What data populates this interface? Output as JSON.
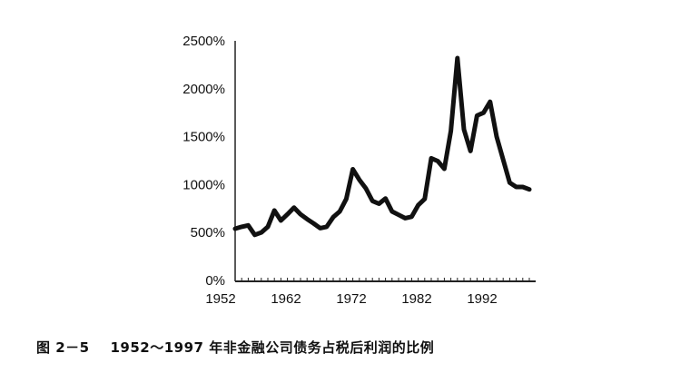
{
  "caption": "图 2－5    1952～1997 年非金融公司债务占税后利润的比例",
  "chart_data": {
    "type": "line",
    "title": "",
    "xlabel": "",
    "ylabel": "",
    "xlim": [
      1952,
      1997
    ],
    "ylim": [
      0,
      2500
    ],
    "grid": false,
    "x_ticks": [
      "1952",
      "1962",
      "1972",
      "1982",
      "1992"
    ],
    "y_ticks": [
      "0%",
      "500%",
      "1000%",
      "1500%",
      "2000%",
      "2500%"
    ],
    "line_color": "#111111",
    "x": [
      1952,
      1953,
      1954,
      1955,
      1956,
      1957,
      1958,
      1959,
      1960,
      1961,
      1962,
      1963,
      1964,
      1965,
      1966,
      1967,
      1968,
      1969,
      1970,
      1971,
      1972,
      1973,
      1974,
      1975,
      1976,
      1977,
      1978,
      1979,
      1980,
      1981,
      1982,
      1983,
      1984,
      1985,
      1986,
      1987,
      1988,
      1989,
      1990,
      1991,
      1992,
      1993,
      1994,
      1995,
      1996,
      1997
    ],
    "values": [
      540,
      560,
      575,
      475,
      500,
      560,
      730,
      625,
      690,
      760,
      690,
      640,
      595,
      545,
      560,
      660,
      720,
      850,
      1160,
      1050,
      960,
      830,
      800,
      855,
      720,
      685,
      650,
      665,
      785,
      850,
      1275,
      1245,
      1165,
      1560,
      2320,
      1575,
      1350,
      1720,
      1750,
      1865,
      1500,
      1260,
      1020,
      975,
      975,
      950
    ]
  }
}
